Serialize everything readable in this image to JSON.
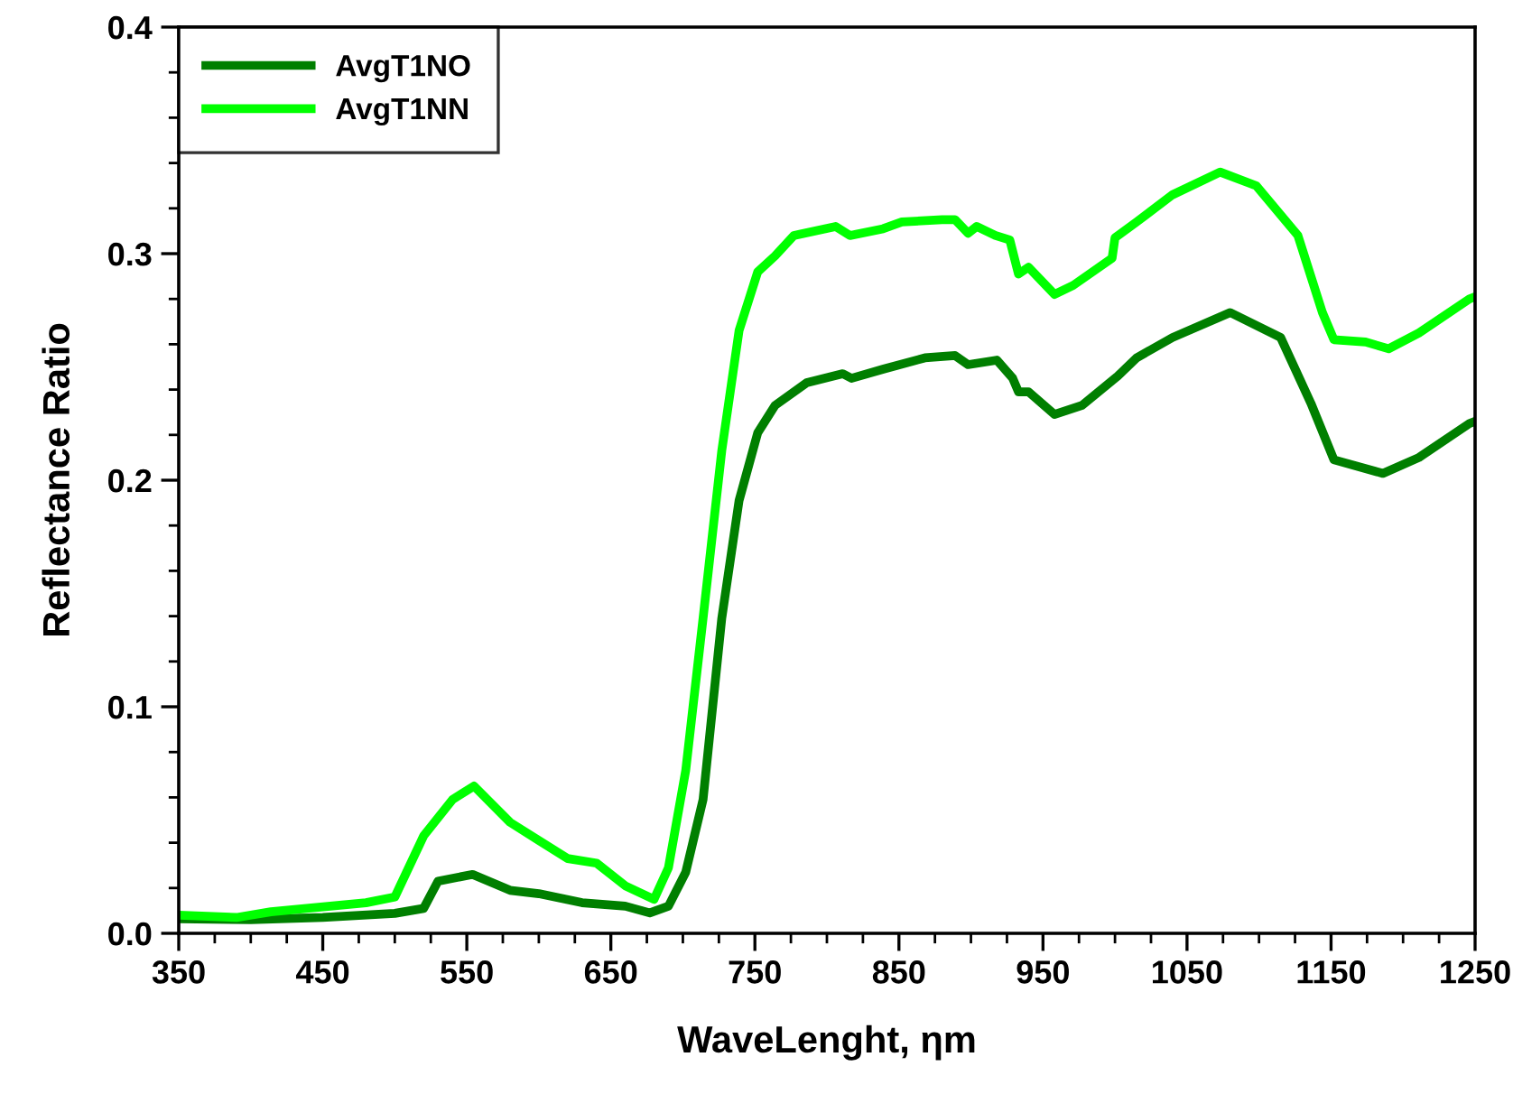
{
  "chart_data": {
    "type": "line",
    "xlabel": "WaveLenght, ηm",
    "ylabel": "Reflectance Ratio",
    "xlim": [
      350,
      1250
    ],
    "ylim": [
      0,
      0.4
    ],
    "xticks": [
      350,
      {
        "value": 375,
        "label": null
      },
      {
        "value": 400,
        "label": null
      },
      {
        "value": 425,
        "label": null
      },
      450,
      {
        "value": 475,
        "label": null
      },
      {
        "value": 500,
        "label": null
      },
      {
        "value": 525,
        "label": null
      },
      550,
      {
        "value": 575,
        "label": null
      },
      {
        "value": 600,
        "label": null
      },
      {
        "value": 625,
        "label": null
      },
      650,
      {
        "value": 675,
        "label": null
      },
      {
        "value": 700,
        "label": null
      },
      {
        "value": 725,
        "label": null
      },
      750,
      {
        "value": 775,
        "label": null
      },
      {
        "value": 800,
        "label": null
      },
      {
        "value": 825,
        "label": null
      },
      850,
      {
        "value": 875,
        "label": null
      },
      {
        "value": 900,
        "label": null
      },
      {
        "value": 925,
        "label": null
      },
      950,
      {
        "value": 975,
        "label": null
      },
      {
        "value": 1000,
        "label": null
      },
      {
        "value": 1025,
        "label": null
      },
      1050,
      {
        "value": 1075,
        "label": null
      },
      {
        "value": 1100,
        "label": null
      },
      {
        "value": 1125,
        "label": null
      },
      1150,
      {
        "value": 1175,
        "label": null
      },
      {
        "value": 1200,
        "label": null
      },
      {
        "value": 1225,
        "label": null
      },
      1250
    ],
    "yticks": [
      {
        "value": 0,
        "label": "0.0"
      },
      {
        "value": 0.02,
        "label": null
      },
      {
        "value": 0.04,
        "label": null
      },
      {
        "value": 0.06,
        "label": null
      },
      {
        "value": 0.08,
        "label": null
      },
      0.1,
      {
        "value": 0.12,
        "label": null
      },
      {
        "value": 0.14,
        "label": null
      },
      {
        "value": 0.16,
        "label": null
      },
      {
        "value": 0.18,
        "label": null
      },
      0.2,
      {
        "value": 0.22,
        "label": null
      },
      {
        "value": 0.24,
        "label": null
      },
      {
        "value": 0.26,
        "label": null
      },
      {
        "value": 0.28,
        "label": null
      },
      0.3,
      {
        "value": 0.32,
        "label": null
      },
      {
        "value": 0.34,
        "label": null
      },
      {
        "value": 0.36,
        "label": null
      },
      {
        "value": 0.38,
        "label": null
      },
      0.4
    ],
    "grid": false,
    "legend": "top left",
    "marker": "none",
    "line_style": "solid",
    "series": [
      {
        "name": "AvgT1NO",
        "color": "#007f00",
        "x": [
          350,
          400,
          450,
          500,
          520,
          530,
          554,
          580,
          600,
          630,
          660,
          677,
          690,
          702,
          714,
          727,
          739,
          752,
          764,
          786,
          811,
          817,
          839,
          868,
          889,
          898,
          918,
          929,
          933,
          940,
          958,
          977,
          1002,
          1015,
          1040,
          1080,
          1115,
          1136,
          1152,
          1186,
          1211,
          1246,
          1250
        ],
        "values": [
          0.0064,
          0.006,
          0.007,
          0.0088,
          0.011,
          0.023,
          0.026,
          0.019,
          0.0175,
          0.0135,
          0.012,
          0.009,
          0.012,
          0.027,
          0.059,
          0.139,
          0.191,
          0.221,
          0.233,
          0.243,
          0.247,
          0.245,
          0.249,
          0.254,
          0.255,
          0.251,
          0.253,
          0.245,
          0.239,
          0.239,
          0.229,
          0.233,
          0.246,
          0.254,
          0.263,
          0.274,
          0.263,
          0.234,
          0.209,
          0.203,
          0.21,
          0.225,
          0.226
        ]
      },
      {
        "name": "AvgT1NN",
        "color": "#00ff00",
        "x": [
          350,
          390,
          414,
          480,
          500,
          520,
          540,
          555,
          580,
          600,
          620,
          640,
          660,
          680,
          690,
          702,
          714,
          727,
          739,
          752,
          764,
          777,
          806,
          816,
          839,
          852,
          880,
          889,
          898,
          904,
          917,
          927,
          933,
          940,
          958,
          971,
          998,
          1000,
          1015,
          1040,
          1073,
          1098,
          1127,
          1144,
          1152,
          1174,
          1190,
          1211,
          1246,
          1250
        ],
        "values": [
          0.008,
          0.007,
          0.0095,
          0.0135,
          0.016,
          0.043,
          0.059,
          0.065,
          0.049,
          0.041,
          0.033,
          0.031,
          0.021,
          0.015,
          0.029,
          0.072,
          0.139,
          0.213,
          0.266,
          0.292,
          0.299,
          0.308,
          0.312,
          0.308,
          0.311,
          0.314,
          0.315,
          0.315,
          0.309,
          0.312,
          0.308,
          0.306,
          0.291,
          0.294,
          0.282,
          0.286,
          0.298,
          0.307,
          0.314,
          0.326,
          0.336,
          0.33,
          0.308,
          0.274,
          0.262,
          0.261,
          0.258,
          0.265,
          0.28,
          0.281
        ]
      }
    ]
  }
}
